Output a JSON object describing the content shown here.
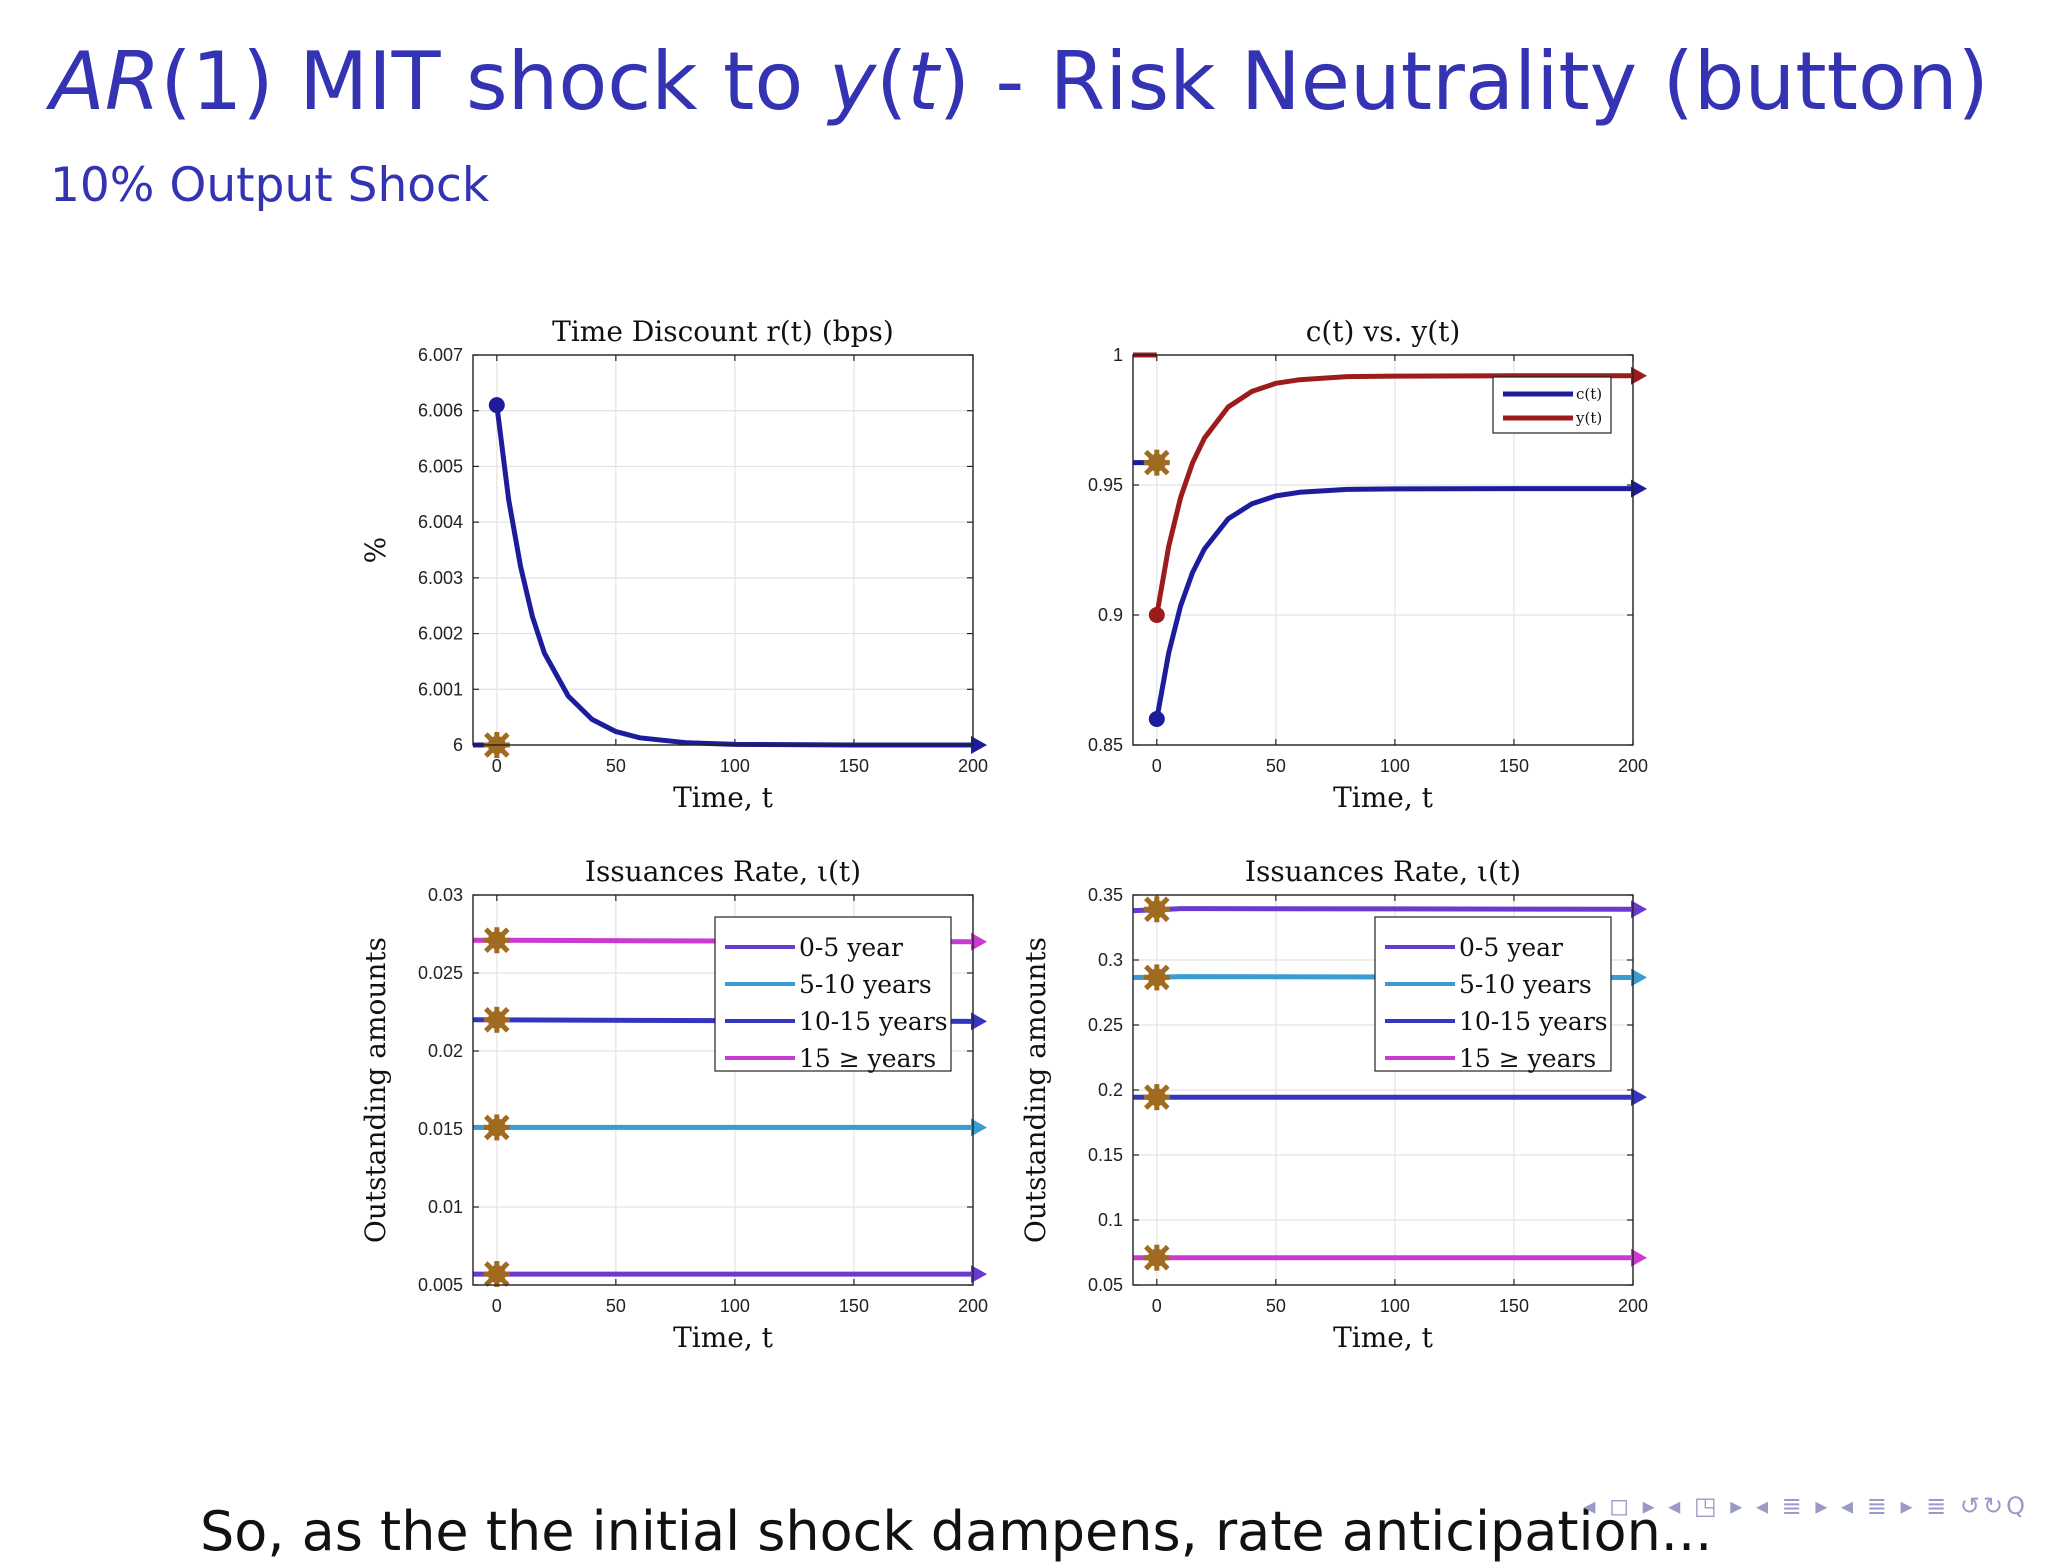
{
  "slide": {
    "title_parts": {
      "ar": "AR",
      "rest_1": "(1) MIT shock to ",
      "y": "y",
      "paren_open": "(",
      "t": "t",
      "rest_2": ") - Risk Neutrality (button)"
    },
    "subtitle": "10% Output Shock",
    "bottom_text": "So, as the the initial shock dampens,    rate anticipation...",
    "nav_symbols": "◂ ◻ ▸ ◂ ◳ ▸ ◂ ≣ ▸ ◂ ≣ ▸   ≣   ↺↻Q"
  },
  "colors": {
    "blue": "#1c1c9c",
    "red": "#9c1c1c",
    "purple": "#6a3ad0",
    "cyan": "#3a9cd0",
    "dark_blue": "#3535c0",
    "magenta": "#c83ad0",
    "marker": "#a06a20"
  },
  "chart_data": [
    {
      "type": "line",
      "title": "Time Discount r(t) (bps)",
      "xlabel": "Time, t",
      "ylabel": "%",
      "xlim": [
        -10,
        200
      ],
      "ylim": [
        6,
        6.007
      ],
      "xticks": [
        "0",
        "50",
        "100",
        "150",
        "200"
      ],
      "yticks": [
        "6",
        "6.001",
        "6.002",
        "6.003",
        "6.004",
        "6.005",
        "6.006",
        "6.007"
      ],
      "grid": true,
      "series": [
        {
          "color_key": "blue",
          "x": [
            0,
            5,
            10,
            15,
            20,
            30,
            40,
            50,
            60,
            80,
            100,
            150,
            200
          ],
          "y": [
            6.0061,
            6.0044,
            6.0032,
            6.0023,
            6.00165,
            6.00088,
            6.00046,
            6.00024,
            6.00013,
            6.00004,
            6.00001,
            6.0,
            6.0
          ]
        }
      ],
      "markers": [
        {
          "x": 0,
          "y": 6.0
        }
      ]
    },
    {
      "type": "line",
      "title": "c(t) vs. y(t)",
      "xlabel": "Time, t",
      "ylabel": "",
      "xlim": [
        -10,
        200
      ],
      "ylim": [
        0.85,
        1
      ],
      "xticks": [
        "0",
        "50",
        "100",
        "150",
        "200"
      ],
      "yticks": [
        "0.85",
        "0.9",
        "0.95",
        "1"
      ],
      "grid": true,
      "legend": {
        "position": "top-right"
      },
      "series": [
        {
          "name": "c(t)",
          "color_key": "blue",
          "x": [
            0,
            5,
            10,
            15,
            20,
            30,
            40,
            50,
            60,
            80,
            100,
            150,
            200
          ],
          "y": [
            0.86,
            0.8854,
            0.9035,
            0.9163,
            0.9254,
            0.937,
            0.9428,
            0.9458,
            0.9472,
            0.9483,
            0.9485,
            0.9486,
            0.9486
          ]
        },
        {
          "name": "y(t)",
          "color_key": "red",
          "x": [
            0,
            5,
            10,
            15,
            20,
            30,
            40,
            50,
            60,
            80,
            100,
            150,
            200
          ],
          "y": [
            0.9,
            0.9264,
            0.9452,
            0.9585,
            0.968,
            0.98,
            0.986,
            0.9891,
            0.9905,
            0.9917,
            0.9919,
            0.992,
            0.992
          ]
        }
      ],
      "pre_shock": [
        {
          "color_key": "blue",
          "y": 0.9586
        },
        {
          "color_key": "red",
          "y": 1.0
        }
      ],
      "markers": [
        {
          "x": 0,
          "y": 0.9586
        }
      ]
    },
    {
      "type": "line",
      "title": "Issuances Rate, ι(t)",
      "xlabel": "Time, t",
      "ylabel": "Outstanding amounts",
      "xlim": [
        -10,
        200
      ],
      "ylim": [
        0.005,
        0.03
      ],
      "xticks": [
        "0",
        "50",
        "100",
        "150",
        "200"
      ],
      "yticks": [
        "0.005",
        "0.01",
        "0.015",
        "0.02",
        "0.025",
        "0.03"
      ],
      "grid": true,
      "legend": {
        "position": "top-right"
      },
      "series": [
        {
          "name": "0-5 year",
          "color_key": "purple",
          "x": [
            -10,
            200
          ],
          "y": [
            0.0057,
            0.0057
          ]
        },
        {
          "name": "5-10 years",
          "color_key": "cyan",
          "x": [
            -10,
            200
          ],
          "y": [
            0.0151,
            0.0151
          ]
        },
        {
          "name": "10-15 years",
          "color_key": "dark_blue",
          "x": [
            -10,
            200
          ],
          "y": [
            0.022,
            0.0219
          ]
        },
        {
          "name": "15 ≥ years",
          "color_key": "magenta",
          "x": [
            -10,
            200
          ],
          "y": [
            0.0271,
            0.027
          ]
        }
      ],
      "markers": [
        {
          "x": 0,
          "y": 0.0057
        },
        {
          "x": 0,
          "y": 0.0151
        },
        {
          "x": 0,
          "y": 0.022
        },
        {
          "x": 0,
          "y": 0.0271
        }
      ]
    },
    {
      "type": "line",
      "title": "Issuances Rate, ι(t)",
      "xlabel": "Time, t",
      "ylabel": "Outstanding amounts",
      "xlim": [
        -10,
        200
      ],
      "ylim": [
        0.05,
        0.35
      ],
      "xticks": [
        "0",
        "50",
        "100",
        "150",
        "200"
      ],
      "yticks": [
        "0.05",
        "0.1",
        "0.15",
        "0.2",
        "0.25",
        "0.3",
        "0.35"
      ],
      "grid": true,
      "legend": {
        "position": "top-right"
      },
      "series": [
        {
          "name": "0-5 year",
          "color_key": "purple",
          "x": [
            -10,
            0,
            10,
            20,
            200
          ],
          "y": [
            0.338,
            0.3385,
            0.3395,
            0.3395,
            0.339
          ]
        },
        {
          "name": "5-10 years",
          "color_key": "cyan",
          "x": [
            -10,
            0,
            10,
            200
          ],
          "y": [
            0.2865,
            0.2868,
            0.2872,
            0.2865
          ]
        },
        {
          "name": "10-15 years",
          "color_key": "dark_blue",
          "x": [
            -10,
            200
          ],
          "y": [
            0.1945,
            0.1945
          ]
        },
        {
          "name": "15 ≥ years",
          "color_key": "magenta",
          "x": [
            -10,
            200
          ],
          "y": [
            0.071,
            0.071
          ]
        }
      ],
      "markers": [
        {
          "x": 0,
          "y": 0.339
        },
        {
          "x": 0,
          "y": 0.2866
        },
        {
          "x": 0,
          "y": 0.1945
        },
        {
          "x": 0,
          "y": 0.071
        }
      ]
    }
  ]
}
